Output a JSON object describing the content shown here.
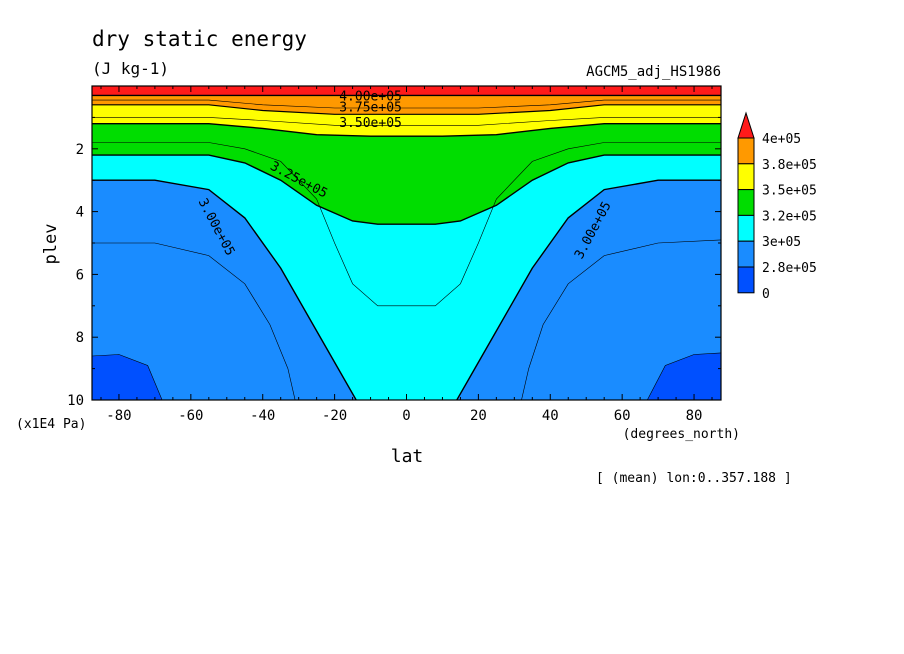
{
  "chart_data": {
    "type": "heatmap",
    "title": "dry static energy",
    "units": "(J kg-1)",
    "dataset": "AGCM5_adj_HS1986",
    "xlabel": "lat",
    "xunits": "(degrees_north)",
    "ylabel": "plev",
    "yunits": "(x1E4 Pa)",
    "note": "[ (mean) lon:0..357.188 ]",
    "xlim": [
      -87.5,
      87.5
    ],
    "ylim": [
      10,
      0
    ],
    "y_inverted": true,
    "x_ticks": [
      -80,
      -60,
      -40,
      -20,
      0,
      20,
      40,
      60,
      80
    ],
    "y_ticks": [
      2,
      4,
      6,
      8,
      10
    ],
    "colorbar": {
      "labels": [
        "4e+05",
        "3.8e+05",
        "3.5e+05",
        "3.2e+05",
        "3e+05",
        "2.8e+05",
        "0"
      ],
      "bins": [
        {
          "color": "#ff1a1a"
        },
        {
          "color": "#ff9900"
        },
        {
          "color": "#ffff00"
        },
        {
          "color": "#00dd00"
        },
        {
          "color": "#00ffff"
        },
        {
          "color": "#1a8cff"
        },
        {
          "color": "#0050ff"
        }
      ]
    },
    "contour_labels": [
      {
        "text": "4.00e+05",
        "lat": -10,
        "plev": 0.35
      },
      {
        "text": "3.75e+05",
        "lat": -10,
        "plev": 0.7
      },
      {
        "text": "3.50e+05",
        "lat": -10,
        "plev": 1.2
      },
      {
        "text": "3.25e+05",
        "lat": -30,
        "plev": 3.0
      },
      {
        "text": "3.00e+05",
        "lat": -53,
        "plev": 4.5
      },
      {
        "text": "3.00e+05",
        "lat": 52,
        "plev": 4.6
      }
    ],
    "contours": [
      {
        "level": 400000,
        "shape": "flat",
        "plev": 0.3
      },
      {
        "level": 375000,
        "shape": "flat",
        "plev": 0.85
      },
      {
        "level": 350000,
        "shape": "band",
        "plev": [
          1.2,
          1.6
        ]
      },
      {
        "level": 325000,
        "shape": "trough",
        "edge_plev": 2.2,
        "center_plev": 4.4
      },
      {
        "level": 300000,
        "shape": "trough",
        "edge_plev": 3.0,
        "center_plev": 10
      },
      {
        "level": 275000,
        "shape": "corner",
        "edge_plev": 8.5
      }
    ]
  }
}
